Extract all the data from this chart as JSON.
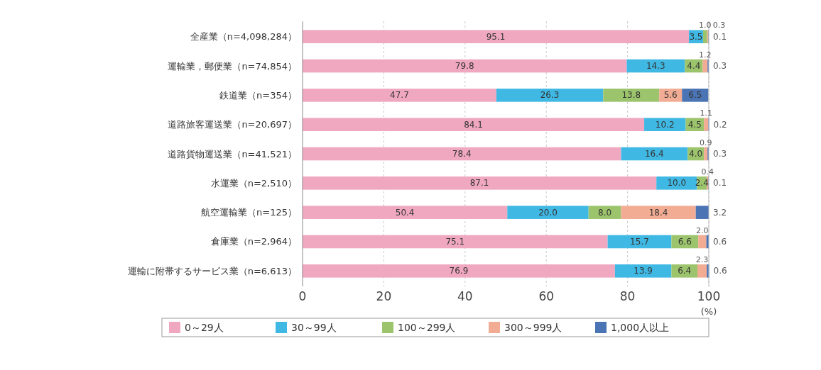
{
  "chart_data": {
    "type": "bar",
    "orientation": "horizontal",
    "stacked": true,
    "xlabel": "(%)",
    "categories": [
      "全産業（n=4,098,284）",
      "運輸業，郵便業（n=74,854）",
      "鉄道業（n=354）",
      "道路旅客運送業（n=20,697）",
      "道路貨物運送業（n=41,521）",
      "水運業（n=2,510）",
      "航空運輸業（n=125）",
      "倉庫業（n=2,964）",
      "運輸に附帯するサービス業（n=6,613）"
    ],
    "series": [
      {
        "name": "0～29人",
        "color": "#f0a8c0",
        "values": [
          95.1,
          79.8,
          47.7,
          84.1,
          78.4,
          87.1,
          50.4,
          75.1,
          76.9
        ],
        "value_labels": [
          "95.1",
          "79.8",
          "47.7",
          "84.1",
          "78.4",
          "87.1",
          "50.4",
          "75.1",
          "76.9"
        ]
      },
      {
        "name": "30～99人",
        "color": "#40b8e4",
        "values": [
          3.5,
          14.3,
          26.3,
          10.2,
          16.4,
          10.0,
          20.0,
          15.7,
          13.9
        ],
        "value_labels": [
          "3.5",
          "14.3",
          "26.3",
          "10.2",
          "16.4",
          "10.0",
          "20.0",
          "15.7",
          "13.9"
        ]
      },
      {
        "name": "100～299人",
        "color": "#9cc46c",
        "values": [
          1.0,
          4.4,
          13.8,
          4.5,
          4.0,
          2.4,
          8.0,
          6.6,
          6.4
        ],
        "value_labels": [
          "1.0",
          "4.4",
          "13.8",
          "4.5",
          "4.0",
          "2.4",
          "8.0",
          "6.6",
          "6.4"
        ]
      },
      {
        "name": "300～999人",
        "color": "#f2ac94",
        "values": [
          0.3,
          1.2,
          5.6,
          1.1,
          0.9,
          0.4,
          18.4,
          2.0,
          2.3
        ],
        "value_labels": [
          "0.3",
          "1.2",
          "5.6",
          "1.1",
          "0.9",
          "0.4",
          "18.4",
          "2.0",
          "2.3"
        ]
      },
      {
        "name": "1,000人以上",
        "color": "#4a74b4",
        "values": [
          0.1,
          0.3,
          6.5,
          0.2,
          0.3,
          0.1,
          3.2,
          0.6,
          0.6
        ],
        "value_labels": [
          "0.1",
          "0.3",
          "6.5",
          "0.2",
          "0.3",
          "0.1",
          "3.2",
          "0.6",
          "0.6"
        ]
      }
    ],
    "xlim": [
      0,
      100
    ],
    "xticks": [
      0,
      20,
      40,
      60,
      80,
      100
    ],
    "grid": "x",
    "legend": "bottom"
  }
}
